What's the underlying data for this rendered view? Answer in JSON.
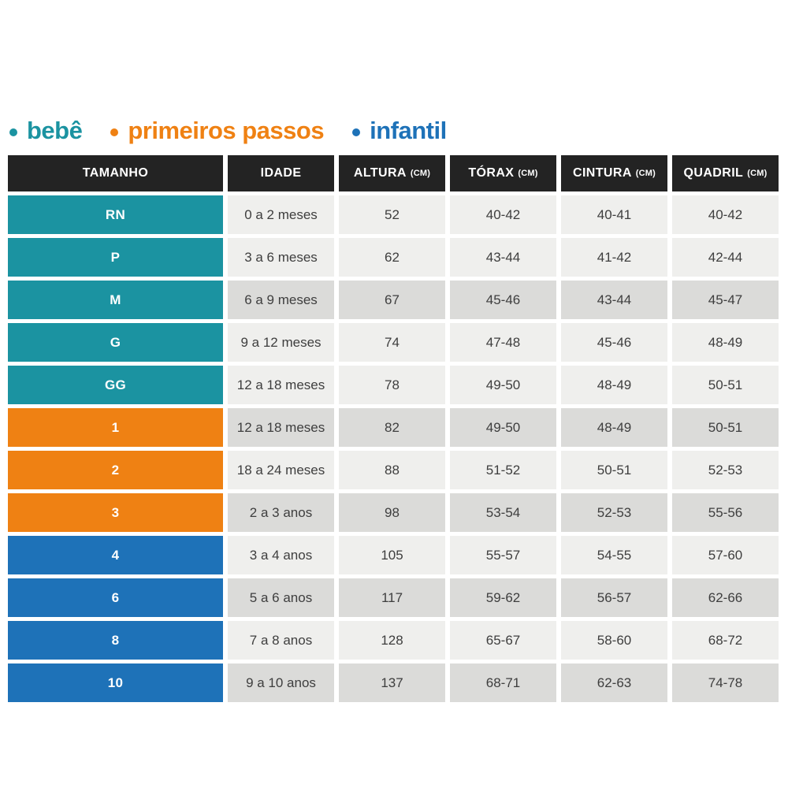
{
  "legend": {
    "items": [
      {
        "label": "bebê",
        "color": "#1B93A1"
      },
      {
        "label": "primeiros passos",
        "color": "#EF8113"
      },
      {
        "label": "infantil",
        "color": "#1E72B8"
      }
    ]
  },
  "table": {
    "header": {
      "background": "#232323",
      "text_color": "#FFFFFF",
      "columns": [
        {
          "label": "TAMANHO",
          "unit": ""
        },
        {
          "label": "IDADE",
          "unit": ""
        },
        {
          "label": "ALTURA",
          "unit": "(CM)"
        },
        {
          "label": "TÓRAX",
          "unit": "(CM)"
        },
        {
          "label": "CINTURA",
          "unit": "(CM)"
        },
        {
          "label": "QUADRIL",
          "unit": "(CM)"
        }
      ]
    },
    "shades": {
      "light": "#EFEFED",
      "dark": "#DBDBD9"
    },
    "group_colors": {
      "bebe": "#1B93A1",
      "primeiros": "#EF8113",
      "infantil": "#1E72B8"
    },
    "rows": [
      {
        "tamanho": "RN",
        "group": "bebe",
        "shade": "light",
        "idade": "0 a 2 meses",
        "altura": "52",
        "torax": "40-42",
        "cintura": "40-41",
        "quadril": "40-42"
      },
      {
        "tamanho": "P",
        "group": "bebe",
        "shade": "light",
        "idade": "3 a 6 meses",
        "altura": "62",
        "torax": "43-44",
        "cintura": "41-42",
        "quadril": "42-44"
      },
      {
        "tamanho": "M",
        "group": "bebe",
        "shade": "dark",
        "idade": "6 a 9 meses",
        "altura": "67",
        "torax": "45-46",
        "cintura": "43-44",
        "quadril": "45-47"
      },
      {
        "tamanho": "G",
        "group": "bebe",
        "shade": "light",
        "idade": "9 a 12 meses",
        "altura": "74",
        "torax": "47-48",
        "cintura": "45-46",
        "quadril": "48-49"
      },
      {
        "tamanho": "GG",
        "group": "bebe",
        "shade": "light",
        "idade": "12 a 18 meses",
        "altura": "78",
        "torax": "49-50",
        "cintura": "48-49",
        "quadril": "50-51"
      },
      {
        "tamanho": "1",
        "group": "primeiros",
        "shade": "dark",
        "idade": "12 a 18 meses",
        "altura": "82",
        "torax": "49-50",
        "cintura": "48-49",
        "quadril": "50-51"
      },
      {
        "tamanho": "2",
        "group": "primeiros",
        "shade": "light",
        "idade": "18 a 24 meses",
        "altura": "88",
        "torax": "51-52",
        "cintura": "50-51",
        "quadril": "52-53"
      },
      {
        "tamanho": "3",
        "group": "primeiros",
        "shade": "dark",
        "idade": "2 a 3 anos",
        "altura": "98",
        "torax": "53-54",
        "cintura": "52-53",
        "quadril": "55-56"
      },
      {
        "tamanho": "4",
        "group": "infantil",
        "shade": "light",
        "idade": "3 a 4 anos",
        "altura": "105",
        "torax": "55-57",
        "cintura": "54-55",
        "quadril": "57-60"
      },
      {
        "tamanho": "6",
        "group": "infantil",
        "shade": "dark",
        "idade": "5 a 6 anos",
        "altura": "117",
        "torax": "59-62",
        "cintura": "56-57",
        "quadril": "62-66"
      },
      {
        "tamanho": "8",
        "group": "infantil",
        "shade": "light",
        "idade": "7 a 8 anos",
        "altura": "128",
        "torax": "65-67",
        "cintura": "58-60",
        "quadril": "68-72"
      },
      {
        "tamanho": "10",
        "group": "infantil",
        "shade": "dark",
        "idade": "9 a 10 anos",
        "altura": "137",
        "torax": "68-71",
        "cintura": "62-63",
        "quadril": "74-78"
      }
    ]
  },
  "chart_data": {
    "type": "table",
    "legend_entries": [
      "bebê",
      "primeiros passos",
      "infantil"
    ],
    "columns": [
      "TAMANHO",
      "IDADE",
      "ALTURA (CM)",
      "TÓRAX (CM)",
      "CINTURA (CM)",
      "QUADRIL (CM)"
    ],
    "rows": [
      [
        "RN",
        "0 a 2 meses",
        "52",
        "40-42",
        "40-41",
        "40-42"
      ],
      [
        "P",
        "3 a 6 meses",
        "62",
        "43-44",
        "41-42",
        "42-44"
      ],
      [
        "M",
        "6 a 9 meses",
        "67",
        "45-46",
        "43-44",
        "45-47"
      ],
      [
        "G",
        "9 a 12 meses",
        "74",
        "47-48",
        "45-46",
        "48-49"
      ],
      [
        "GG",
        "12 a 18 meses",
        "78",
        "49-50",
        "48-49",
        "50-51"
      ],
      [
        "1",
        "12 a 18 meses",
        "82",
        "49-50",
        "48-49",
        "50-51"
      ],
      [
        "2",
        "18 a 24 meses",
        "88",
        "51-52",
        "50-51",
        "52-53"
      ],
      [
        "3",
        "2 a 3 anos",
        "98",
        "53-54",
        "52-53",
        "55-56"
      ],
      [
        "4",
        "3 a 4 anos",
        "105",
        "55-57",
        "54-55",
        "57-60"
      ],
      [
        "6",
        "5 a 6 anos",
        "117",
        "59-62",
        "56-57",
        "62-66"
      ],
      [
        "8",
        "7 a 8 anos",
        "128",
        "65-67",
        "58-60",
        "68-72"
      ],
      [
        "10",
        "9 a 10 anos",
        "137",
        "68-71",
        "62-63",
        "74-78"
      ]
    ],
    "row_groups": [
      "bebê",
      "bebê",
      "bebê",
      "bebê",
      "bebê",
      "primeiros passos",
      "primeiros passos",
      "primeiros passos",
      "infantil",
      "infantil",
      "infantil",
      "infantil"
    ]
  }
}
